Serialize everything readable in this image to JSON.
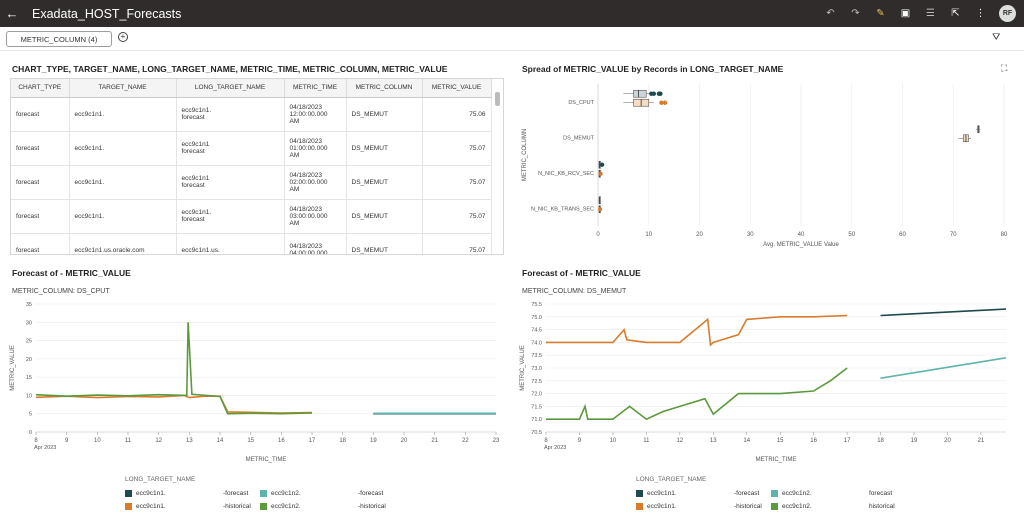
{
  "app": {
    "title": "Exadata_HOST_Forecasts",
    "user_initials": "RF"
  },
  "toolbar": {
    "icons": [
      "undo-icon",
      "redo-icon",
      "edit-icon",
      "present-icon",
      "notes-icon",
      "export-icon",
      "more-icon"
    ]
  },
  "filter": {
    "pill_label": "METRIC_COLUMN (4)"
  },
  "table_panel": {
    "title": "CHART_TYPE, TARGET_NAME, LONG_TARGET_NAME, METRIC_TIME, METRIC_COLUMN, METRIC_VALUE",
    "columns": [
      "CHART_TYPE",
      "TARGET_NAME",
      "LONG_TARGET_NAME",
      "METRIC_TIME",
      "METRIC_COLUMN",
      "METRIC_VALUE"
    ],
    "rows": [
      {
        "chart_type": "forecast",
        "target": "ecc9c1n1.",
        "long1": "ecc9c1n1.",
        "long2": "forecast",
        "t1": "04/18/2023",
        "t2": "12:00:00.000",
        "t3": "AM",
        "col": "DS_MEMUT",
        "val": "75.06"
      },
      {
        "chart_type": "forecast",
        "target": "ecc9c1n1.",
        "long1": "ecc9c1n1",
        "long2": "forecast",
        "t1": "04/18/2023",
        "t2": "01:00:00.000",
        "t3": "AM",
        "col": "DS_MEMUT",
        "val": "75.07"
      },
      {
        "chart_type": "forecast",
        "target": "ecc9c1n1.",
        "long1": "ecc9c1n1",
        "long2": "forecast",
        "t1": "04/18/2023",
        "t2": "02:00:00.000",
        "t3": "AM",
        "col": "DS_MEMUT",
        "val": "75.07"
      },
      {
        "chart_type": "forecast",
        "target": "ecc9c1n1.",
        "long1": "ecc9c1n1.",
        "long2": "forecast",
        "t1": "04/18/2023",
        "t2": "03:00:00.000",
        "t3": "AM",
        "col": "DS_MEMUT",
        "val": "75.07"
      },
      {
        "chart_type": "forecast",
        "target": "ecc9c1n1.us.oracle.com",
        "long1": "ecc9c1n1.us.",
        "long2": "",
        "t1": "04/18/2023",
        "t2": "04:00:00.000",
        "t3": "",
        "col": "DS_MEMUT",
        "val": "75.07"
      }
    ]
  },
  "spread_panel": {
    "title": "Spread of METRIC_VALUE by Records in LONG_TARGET_NAME",
    "xlabel": "Avg. METRIC_VALUE Value",
    "ylabel": "METRIC_COLUMN",
    "ticks": [
      "0",
      "10",
      "20",
      "30",
      "40",
      "50",
      "60",
      "70",
      "80"
    ]
  },
  "forecast_left": {
    "title": "Forecast of - METRIC_VALUE",
    "sub_label": "METRIC_COLUMN:",
    "sub_value": "DS_CPUT",
    "xlabel": "METRIC_TIME",
    "ylabel": "METRIC_VALUE",
    "x_ticks": [
      "8",
      "9",
      "10",
      "11",
      "12",
      "13",
      "14",
      "15",
      "16",
      "17",
      "18",
      "19",
      "20",
      "21",
      "22",
      "23"
    ],
    "x_month": "Apr 2023",
    "y_ticks": [
      "0",
      "5",
      "10",
      "15",
      "20",
      "25",
      "30",
      "35"
    ]
  },
  "forecast_right": {
    "title": "Forecast of - METRIC_VALUE",
    "sub_label": "METRIC_COLUMN:",
    "sub_value": "DS_MEMUT",
    "xlabel": "METRIC_TIME",
    "ylabel": "METRIC_VALUE",
    "x_ticks": [
      "8",
      "9",
      "10",
      "11",
      "12",
      "13",
      "14",
      "15",
      "16",
      "17",
      "18",
      "19",
      "20",
      "21"
    ],
    "x_month": "Apr 2023",
    "y_ticks": [
      "70.5",
      "71.0",
      "71.5",
      "72.0",
      "72.5",
      "73.0",
      "73.5",
      "74.0",
      "74.5",
      "75.0",
      "75.5"
    ]
  },
  "legend": {
    "title": "LONG_TARGET_NAME",
    "left_items": [
      {
        "name": "ecc9c1n1.",
        "suffix": "-forecast",
        "color": "#1e4a4d"
      },
      {
        "name": "ecc9c1n2.",
        "suffix": "-forecast",
        "color": "#5fb3ad"
      },
      {
        "name": "ecc9c1n1.",
        "suffix": "-historical",
        "color": "#d97b2a"
      },
      {
        "name": "ecc9c1n2.",
        "suffix": "-historical",
        "color": "#5b9a3c"
      }
    ],
    "right_items": [
      {
        "name": "ecc9c1n1.",
        "suffix": "-forecast",
        "color": "#1e4a4d"
      },
      {
        "name": "ecc9c1n2.",
        "suffix": "forecast",
        "color": "#5fb3ad"
      },
      {
        "name": "ecc9c1n1.",
        "suffix": "-historical",
        "color": "#d97b2a"
      },
      {
        "name": "ecc9c1n2.",
        "suffix": "historical",
        "color": "#5b9a3c"
      }
    ]
  },
  "colors": {
    "n1_forecast": "#1e4a4d",
    "n2_forecast": "#5fb3ad",
    "n1_hist": "#d97b2a",
    "n2_hist": "#5b9a3c"
  },
  "chart_data": [
    {
      "type": "scatter",
      "title": "Spread of METRIC_VALUE by Records in LONG_TARGET_NAME",
      "xlabel": "Avg. METRIC_VALUE Value",
      "ylabel": "METRIC_COLUMN",
      "categories": [
        "DS_CPUT",
        "DS_MEMUT",
        "N_NIC_KB_RCV_SEC",
        "N_NIC_KB_TRANS_SEC"
      ],
      "xlim": [
        0,
        80
      ],
      "series": [
        {
          "name": "ecc9c1n1.-forecast",
          "boxes": [
            [
              5,
              7,
              8,
              9.5,
              11
            ],
            [
              74.5,
              74.8,
              75.0,
              75.1,
              75.3
            ],
            [
              0.1,
              0.2,
              0.3,
              0.4,
              0.6
            ],
            [
              0.1,
              0.2,
              0.3,
              0.4,
              0.5
            ]
          ],
          "outliers": [
            [
              10.5,
              11,
              12,
              12.3
            ],
            [],
            [
              0.8
            ],
            []
          ]
        },
        {
          "name": "ecc9c1n1.-historical",
          "boxes": [
            [
              5,
              7,
              8.5,
              10,
              11
            ],
            [
              71,
              72,
              72.5,
              73,
              73.5
            ],
            [
              0.1,
              0.2,
              0.3,
              0.4,
              0.6
            ],
            [
              0.1,
              0.2,
              0.3,
              0.4,
              0.5
            ]
          ],
          "outliers": [
            [
              12.5,
              13.2
            ],
            [],
            [
              0.5
            ],
            [
              0.4
            ]
          ]
        }
      ]
    },
    {
      "type": "line",
      "title": "Forecast of - METRIC_VALUE",
      "subtitle": "METRIC_COLUMN: DS_CPUT",
      "xlabel": "METRIC_TIME",
      "ylabel": "METRIC_VALUE",
      "ylim": [
        0,
        35
      ],
      "xlim": [
        "2023-04-08",
        "2023-04-23"
      ],
      "series": [
        {
          "name": "ecc9c1n1.-historical",
          "x": [
            "2023-04-08",
            "2023-04-09",
            "2023-04-10",
            "2023-04-11",
            "2023-04-12",
            "2023-04-12T20:00",
            "2023-04-13",
            "2023-04-13T12:00",
            "2023-04-14",
            "2023-04-14T06:00",
            "2023-04-15",
            "2023-04-16",
            "2023-04-17"
          ],
          "y": [
            9.5,
            9.8,
            9.4,
            9.7,
            9.6,
            10.0,
            9.4,
            9.8,
            9.8,
            5.5,
            5.4,
            5.2,
            5.3
          ]
        },
        {
          "name": "ecc9c1n2.-historical",
          "x": [
            "2023-04-08",
            "2023-04-09",
            "2023-04-10",
            "2023-04-11",
            "2023-04-12",
            "2023-04-12T22:00",
            "2023-04-12T23:00",
            "2023-04-13T02:00",
            "2023-04-14",
            "2023-04-14T06:00",
            "2023-04-15",
            "2023-04-16",
            "2023-04-17"
          ],
          "y": [
            10.2,
            9.8,
            10.1,
            9.9,
            10.2,
            10.0,
            30.0,
            10.3,
            9.7,
            5.0,
            5.1,
            5.0,
            5.2
          ]
        },
        {
          "name": "ecc9c1n1.-forecast",
          "x": [
            "2023-04-19",
            "2023-04-23"
          ],
          "y": [
            5.0,
            5.0
          ]
        },
        {
          "name": "ecc9c1n2.-forecast",
          "x": [
            "2023-04-19",
            "2023-04-23"
          ],
          "y": [
            5.1,
            5.1
          ]
        }
      ]
    },
    {
      "type": "line",
      "title": "Forecast of - METRIC_VALUE",
      "subtitle": "METRIC_COLUMN: DS_MEMUT",
      "xlabel": "METRIC_TIME",
      "ylabel": "METRIC_VALUE",
      "ylim": [
        70.5,
        75.5
      ],
      "xlim": [
        "2023-04-08",
        "2023-04-21T18:00"
      ],
      "series": [
        {
          "name": "ecc9c1n1.-historical",
          "x": [
            "2023-04-08",
            "2023-04-09",
            "2023-04-10",
            "2023-04-10T08:00",
            "2023-04-10T10:00",
            "2023-04-11",
            "2023-04-12",
            "2023-04-12T20:00",
            "2023-04-12T22:00",
            "2023-04-13",
            "2023-04-13T18:00",
            "2023-04-14",
            "2023-04-15",
            "2023-04-16",
            "2023-04-17"
          ],
          "y": [
            74.0,
            74.0,
            74.0,
            74.5,
            74.1,
            74.0,
            74.0,
            74.9,
            73.9,
            74.0,
            74.3,
            74.9,
            75.0,
            75.0,
            75.05
          ]
        },
        {
          "name": "ecc9c1n2.-historical",
          "x": [
            "2023-04-08",
            "2023-04-09",
            "2023-04-09T04:00",
            "2023-04-09T06:00",
            "2023-04-10",
            "2023-04-10T12:00",
            "2023-04-11",
            "2023-04-11T12:00",
            "2023-04-12",
            "2023-04-12T18:00",
            "2023-04-13",
            "2023-04-13T18:00",
            "2023-04-14",
            "2023-04-15",
            "2023-04-16",
            "2023-04-16T12:00",
            "2023-04-17"
          ],
          "y": [
            71.0,
            71.0,
            71.5,
            71.0,
            71.0,
            71.5,
            71.0,
            71.3,
            71.5,
            71.8,
            71.2,
            72.0,
            72.0,
            72.0,
            72.1,
            72.5,
            73.0
          ]
        },
        {
          "name": "ecc9c1n1.-forecast",
          "x": [
            "2023-04-18",
            "2023-04-21T18:00"
          ],
          "y": [
            75.05,
            75.3
          ]
        },
        {
          "name": "ecc9c1n2.-forecast",
          "x": [
            "2023-04-18",
            "2023-04-21T18:00"
          ],
          "y": [
            72.6,
            73.4
          ]
        }
      ]
    }
  ]
}
